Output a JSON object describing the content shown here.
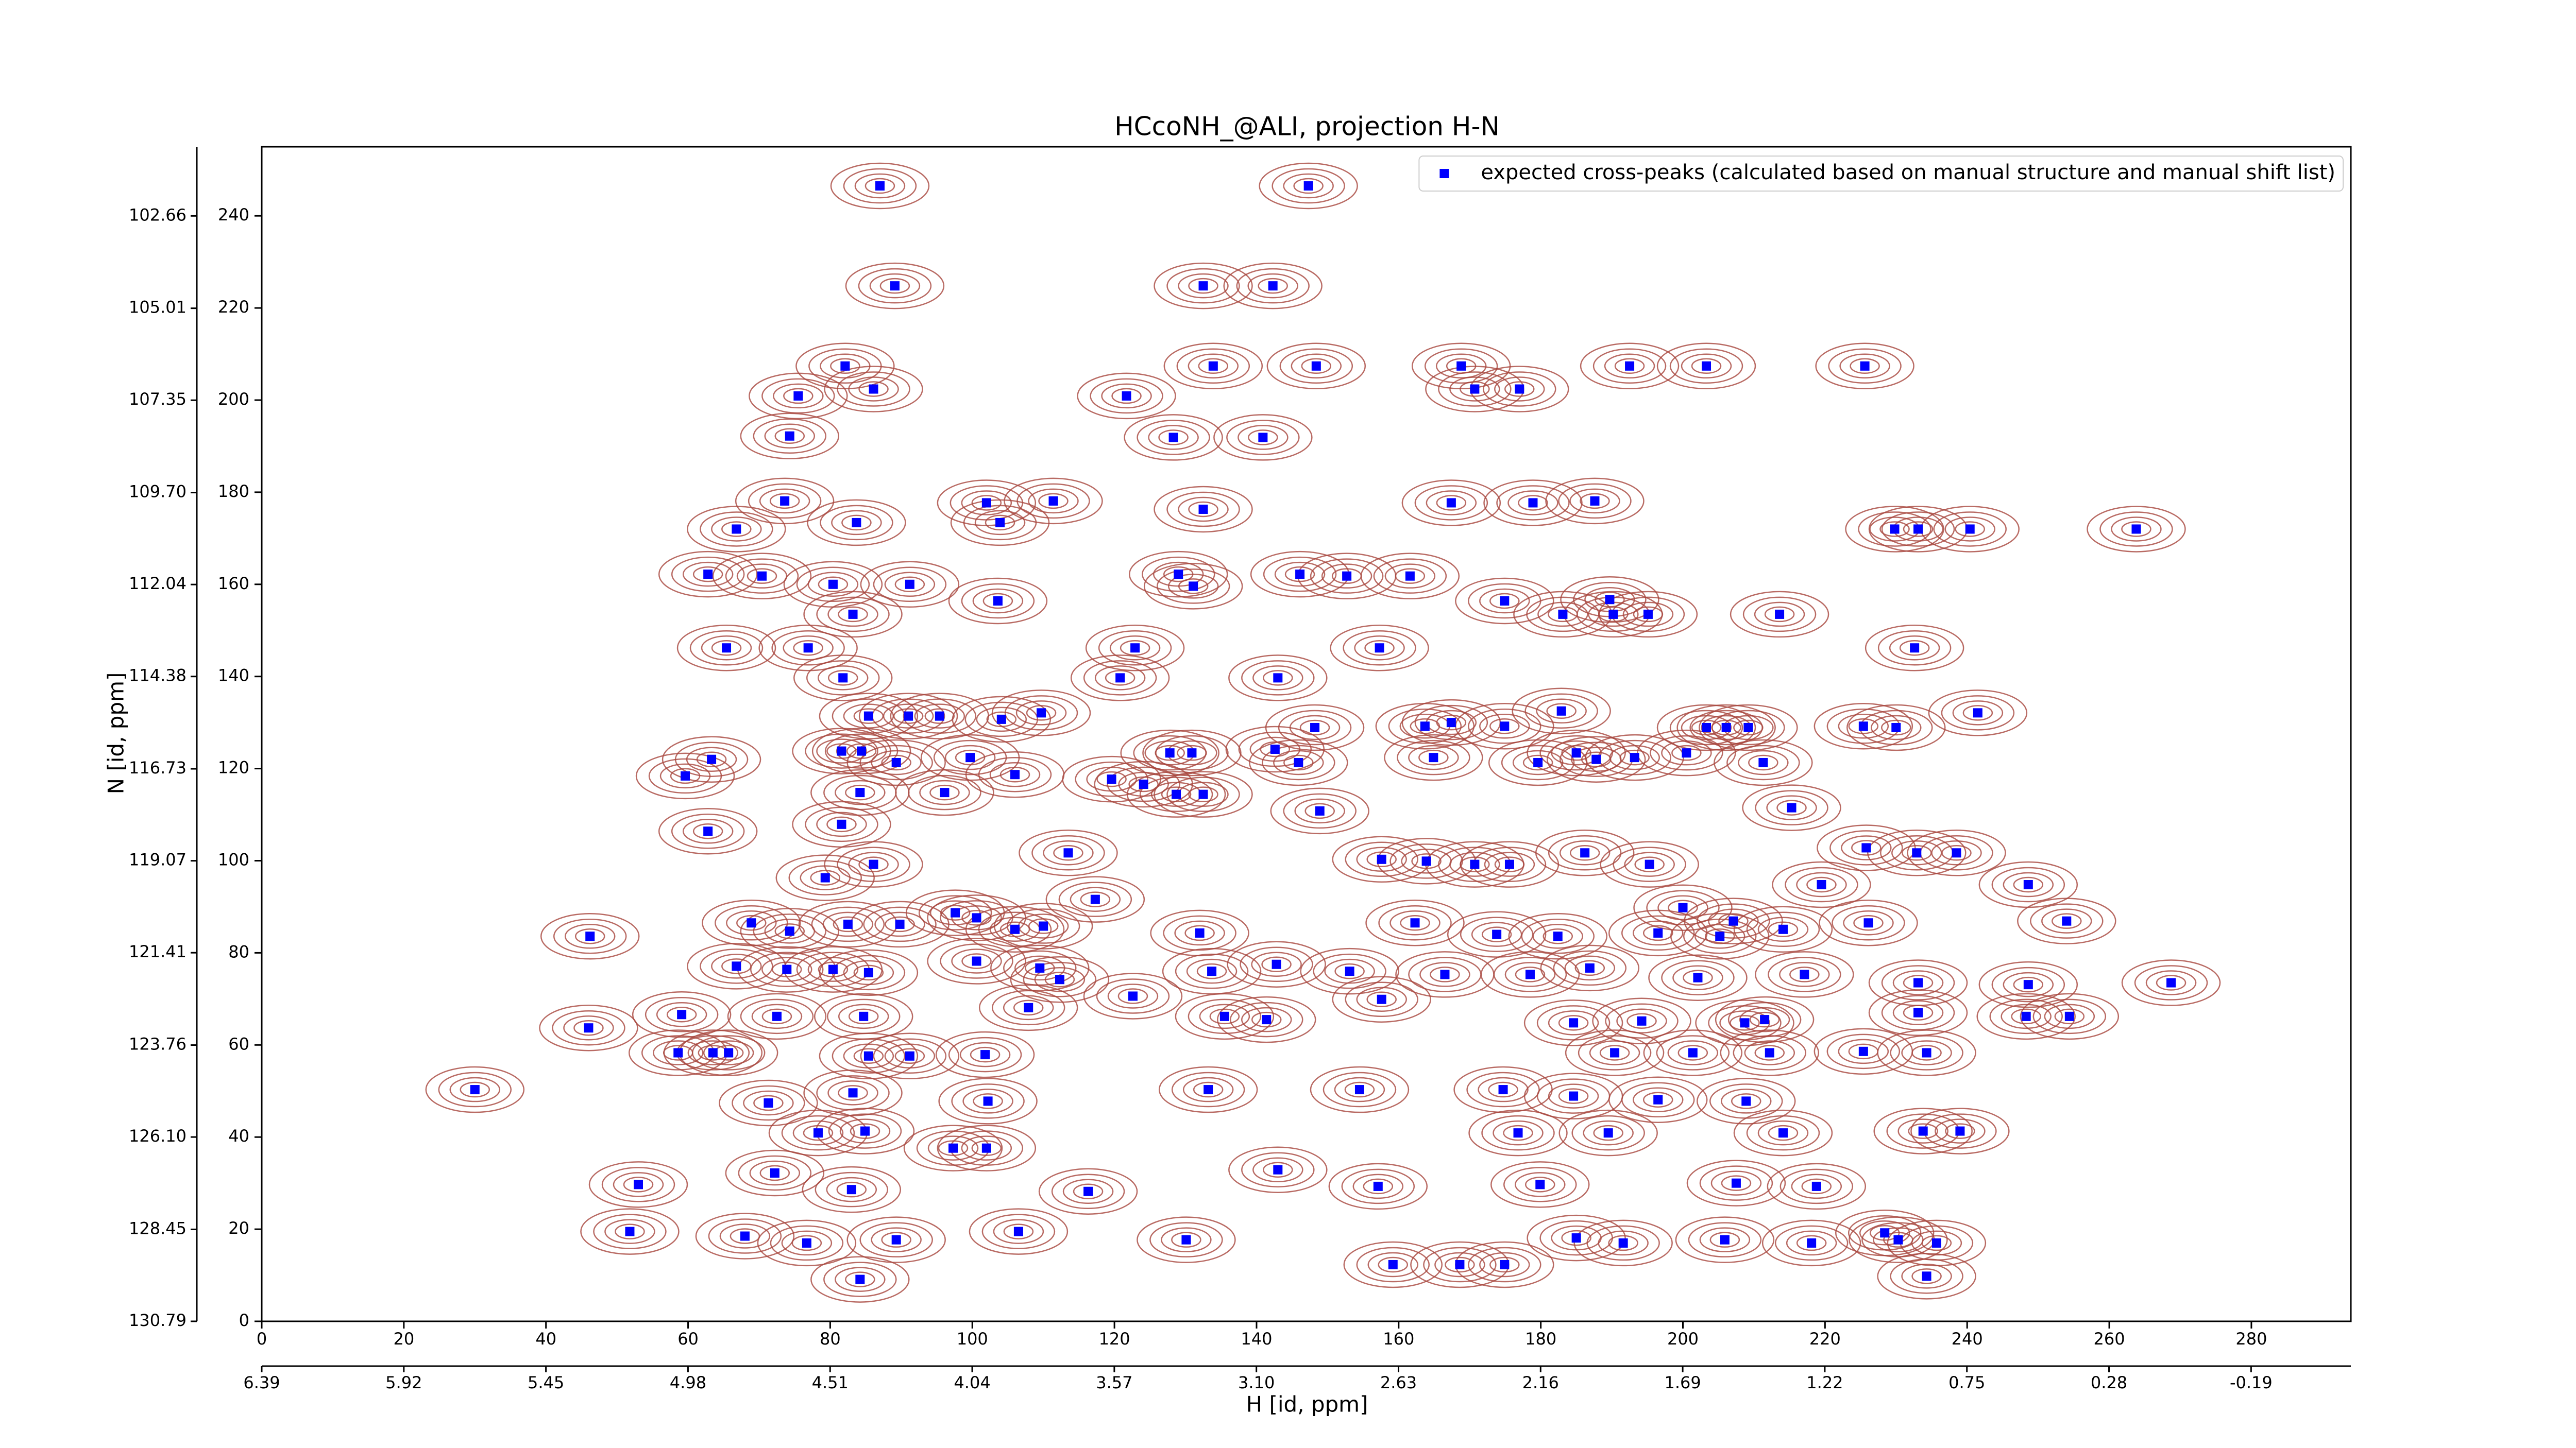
{
  "chart_data": {
    "type": "scatter",
    "title": "HCcoNH_@ALI, projection H-N",
    "xlabel": "H [id, ppm]",
    "ylabel": "N [id, ppm]",
    "xlim": [
      0,
      294
    ],
    "ylim": [
      0,
      255
    ],
    "xticks": [
      0,
      20,
      40,
      60,
      80,
      100,
      120,
      140,
      160,
      180,
      200,
      220,
      240,
      260,
      280
    ],
    "yticks": [
      0,
      20,
      40,
      60,
      80,
      100,
      120,
      140,
      160,
      180,
      200,
      220,
      240
    ],
    "x2lim": [
      6.39,
      -0.52
    ],
    "x2ticks": [
      6.39,
      5.92,
      5.45,
      4.98,
      4.51,
      4.04,
      3.57,
      {
        "value": 3.1,
        "label": "3.10"
      },
      2.63,
      2.16,
      1.69,
      1.22,
      0.75,
      0.28,
      -0.19
    ],
    "y2lim": [
      130.79,
      100.9
    ],
    "y2ticks": [
      130.79,
      128.45,
      {
        "value": 126.1,
        "label": "126.10"
      },
      123.76,
      121.41,
      119.07,
      116.73,
      114.38,
      112.04,
      {
        "value": 109.7,
        "label": "109.70"
      },
      107.35,
      105.01,
      102.66
    ],
    "legend": "upper right",
    "series": [
      {
        "name": "expected cross-peaks (calculated based on manual structure and manual shift list)",
        "color": "#0000ff",
        "x": [
          87.0,
          147.3,
          89.1,
          132.5,
          142.3,
          82.1,
          75.5,
          86.1,
          121.7,
          133.9,
          148.4,
          168.8,
          170.7,
          177.0,
          192.5,
          203.3,
          225.6,
          74.3,
          128.3,
          140.9,
          73.6,
          66.8,
          83.7,
          102.0,
          103.9,
          111.4,
          132.5,
          167.4,
          178.9,
          187.6,
          229.8,
          233.1,
          240.4,
          263.8,
          62.8,
          70.4,
          80.4,
          83.2,
          91.2,
          103.6,
          129.0,
          131.1,
          146.1,
          152.7,
          161.6,
          174.9,
          183.1,
          189.7,
          190.2,
          195.1,
          213.6,
          65.4,
          76.9,
          122.9,
          157.3,
          232.6,
          81.8,
          143.0,
          120.8,
          91.0,
          85.4,
          95.4,
          104.1,
          109.7,
          148.2,
          163.7,
          167.4,
          182.9,
          174.9,
          203.3,
          206.1,
          209.2,
          225.4,
          230.0,
          241.5,
          63.3,
          59.6,
          81.6,
          84.4,
          89.3,
          99.7,
          106.0,
          119.6,
          127.8,
          130.9,
          142.6,
          145.9,
          164.9,
          179.6,
          185.0,
          187.8,
          193.2,
          200.5,
          211.3,
          62.8,
          79.3,
          86.1,
          84.2,
          81.6,
          96.1,
          113.5,
          124.1,
          128.7,
          132.5,
          148.9,
          157.6,
          163.9,
          170.7,
          175.6,
          186.2,
          195.3,
          215.3,
          225.8,
          232.9,
          238.5,
          248.6,
          219.5,
          226.1,
          207.1,
          200.0,
          254.0,
          46.2,
          68.9,
          74.3,
          82.5,
          89.8,
          97.6,
          100.6,
          106.0,
          110.0,
          117.3,
          132.0,
          142.8,
          162.3,
          173.8,
          182.4,
          196.5,
          205.2,
          214.1,
          66.8,
          73.9,
          80.4,
          85.4,
          100.6,
          109.5,
          112.3,
          122.6,
          133.7,
          153.1,
          166.5,
          178.5,
          186.9,
          202.1,
          217.1,
          233.1,
          248.6,
          268.7,
          59.1,
          72.5,
          84.7,
          107.9,
          135.5,
          141.4,
          157.6,
          211.5,
          233.1,
          248.3,
          254.4,
          46.0,
          58.6,
          63.5,
          65.7,
          85.4,
          91.2,
          101.8,
          225.4,
          234.3,
          190.4,
          201.4,
          212.2,
          184.6,
          194.2,
          208.7,
          30.0,
          71.3,
          83.2,
          102.2,
          133.2,
          154.5,
          174.7,
          184.6,
          196.5,
          208.9,
          78.3,
          84.9,
          97.3,
          102.0,
          176.8,
          189.5,
          214.1,
          233.8,
          239.0,
          53.0,
          72.2,
          83.0,
          116.3,
          143.0,
          157.1,
          179.9,
          207.5,
          218.8,
          51.8,
          68.0,
          76.7,
          89.3,
          106.5,
          130.1,
          185.0,
          191.6,
          205.9,
          218.1,
          228.4,
          235.7,
          230.3,
          84.2,
          159.2,
          168.6,
          174.9,
          234.3
        ],
        "values": [
          246.5,
          246.5,
          224.8,
          224.8,
          224.8,
          207.4,
          200.9,
          202.4,
          200.9,
          207.4,
          207.4,
          207.4,
          202.4,
          202.4,
          207.4,
          207.4,
          207.4,
          192.2,
          191.9,
          191.9,
          178.1,
          172.0,
          173.4,
          177.7,
          173.4,
          178.1,
          176.3,
          177.7,
          177.7,
          178.1,
          172.0,
          172.0,
          172.0,
          172.0,
          162.2,
          161.8,
          160.0,
          153.5,
          160.0,
          156.4,
          162.2,
          159.6,
          162.2,
          161.8,
          161.8,
          156.4,
          153.5,
          156.7,
          153.5,
          153.5,
          153.5,
          146.2,
          146.2,
          146.2,
          146.2,
          146.2,
          139.7,
          139.7,
          139.7,
          131.4,
          131.4,
          131.4,
          130.7,
          132.1,
          128.9,
          129.2,
          130.0,
          132.5,
          129.2,
          128.9,
          128.9,
          128.9,
          129.2,
          128.9,
          132.1,
          122.0,
          118.4,
          123.8,
          123.8,
          121.3,
          122.4,
          118.7,
          117.7,
          123.4,
          123.4,
          124.2,
          121.3,
          122.4,
          121.3,
          123.4,
          122.0,
          122.4,
          123.4,
          121.3,
          106.4,
          96.3,
          99.2,
          114.8,
          107.9,
          114.8,
          101.7,
          116.6,
          114.4,
          114.4,
          110.8,
          100.3,
          99.9,
          99.2,
          99.2,
          101.7,
          99.2,
          111.5,
          102.8,
          101.7,
          101.7,
          94.8,
          94.8,
          86.5,
          86.9,
          89.8,
          86.9,
          83.6,
          86.5,
          84.7,
          86.2,
          86.2,
          88.7,
          87.6,
          85.1,
          85.8,
          91.6,
          84.3,
          77.5,
          86.5,
          84.0,
          83.6,
          84.3,
          83.6,
          85.1,
          77.1,
          76.4,
          76.4,
          75.7,
          78.2,
          76.7,
          74.2,
          70.6,
          76.0,
          76.0,
          75.3,
          75.3,
          76.7,
          74.6,
          75.3,
          73.5,
          73.1,
          73.5,
          66.6,
          66.2,
          66.2,
          68.1,
          66.2,
          65.5,
          69.9,
          65.5,
          67.0,
          66.2,
          66.2,
          63.7,
          58.3,
          58.3,
          58.3,
          57.6,
          57.6,
          57.9,
          58.6,
          58.3,
          58.3,
          58.3,
          58.3,
          64.8,
          65.2,
          64.8,
          50.3,
          47.4,
          49.6,
          47.8,
          50.3,
          50.3,
          50.3,
          48.9,
          48.1,
          47.8,
          40.9,
          41.3,
          37.6,
          37.6,
          40.9,
          40.9,
          40.9,
          41.3,
          41.3,
          29.7,
          32.2,
          28.6,
          28.2,
          32.9,
          29.3,
          29.7,
          30.0,
          29.3,
          19.5,
          18.5,
          17.0,
          17.7,
          19.5,
          17.7,
          18.1,
          17.0,
          17.7,
          17.0,
          19.2,
          17.0,
          17.7,
          9.1,
          12.3,
          12.3,
          12.3,
          9.8
        ]
      }
    ]
  }
}
